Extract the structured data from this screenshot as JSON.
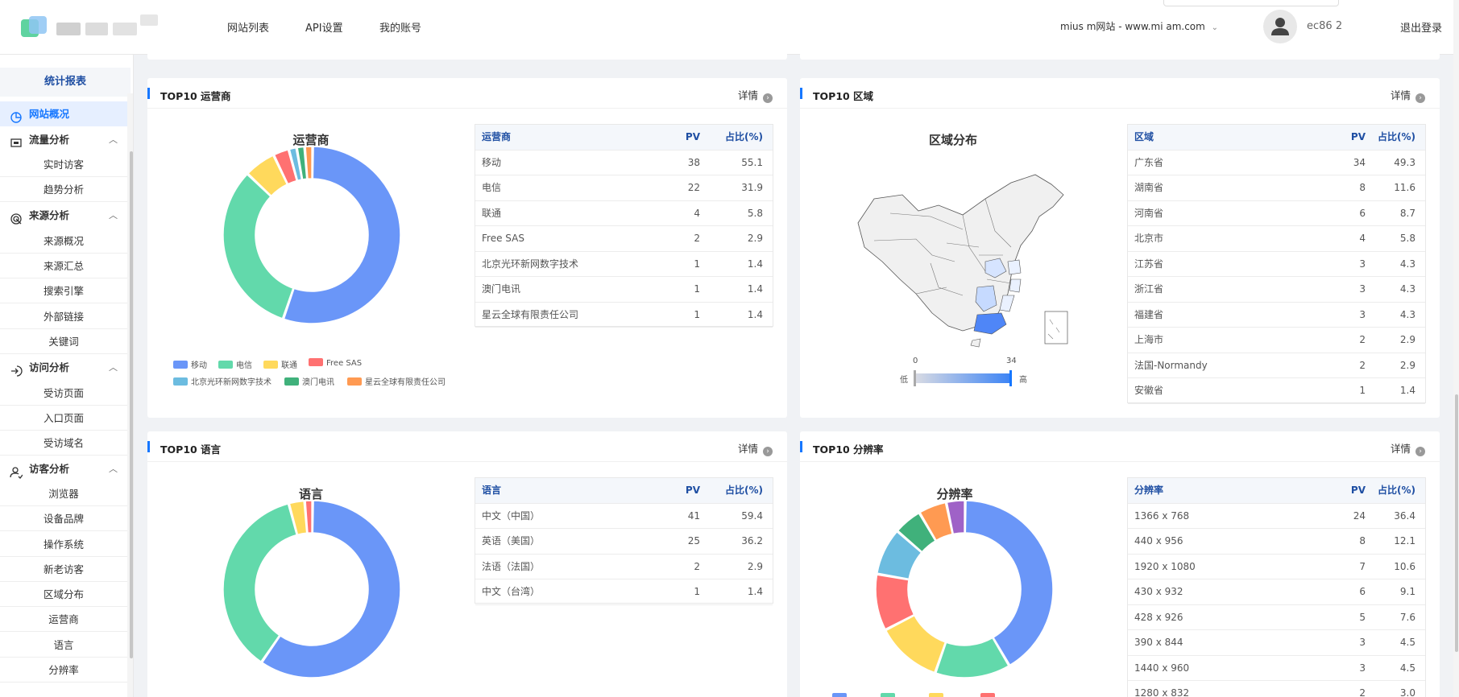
{
  "header": {
    "nav": [
      "网站列表",
      "API设置",
      "我的账号"
    ],
    "site_select": "mius    m网站 - www.mi       am.com",
    "user_id": "ec86        2",
    "logout": "退出登录"
  },
  "sidebar": {
    "title": "统计报表",
    "rows": [
      {
        "type": "group",
        "label": "网站概况",
        "icon": "pie-chart-icon",
        "active": true,
        "expandable": false
      },
      {
        "type": "group",
        "label": "流量分析",
        "icon": "monitor-icon",
        "expandable": true
      },
      {
        "type": "item",
        "label": "实时访客"
      },
      {
        "type": "item",
        "label": "趋势分析"
      },
      {
        "type": "group",
        "label": "来源分析",
        "icon": "target-icon",
        "expandable": true
      },
      {
        "type": "item",
        "label": "来源概况"
      },
      {
        "type": "item",
        "label": "来源汇总"
      },
      {
        "type": "item",
        "label": "搜索引擎"
      },
      {
        "type": "item",
        "label": "外部链接"
      },
      {
        "type": "item",
        "label": "关键词"
      },
      {
        "type": "group",
        "label": "访问分析",
        "icon": "enter-icon",
        "expandable": true
      },
      {
        "type": "item",
        "label": "受访页面"
      },
      {
        "type": "item",
        "label": "入口页面"
      },
      {
        "type": "item",
        "label": "受访域名"
      },
      {
        "type": "group",
        "label": "访客分析",
        "icon": "user-icon",
        "expandable": true
      },
      {
        "type": "item",
        "label": "浏览器"
      },
      {
        "type": "item",
        "label": "设备品牌"
      },
      {
        "type": "item",
        "label": "操作系统"
      },
      {
        "type": "item",
        "label": "新老访客"
      },
      {
        "type": "item",
        "label": "区域分布"
      },
      {
        "type": "item",
        "label": "运营商"
      },
      {
        "type": "item",
        "label": "语言"
      },
      {
        "type": "item",
        "label": "分辨率"
      }
    ]
  },
  "colors": [
    "#6a96f8",
    "#62d9ab",
    "#ffd95c",
    "#ff7171",
    "#6cbce0",
    "#40b17b",
    "#ff9a52",
    "#9f62c7",
    "#ef7eca",
    "#666666"
  ],
  "cards": {
    "carrier": {
      "title": "TOP10 运营商",
      "detail": "详情",
      "chart_title": "运营商",
      "headers": [
        "运营商",
        "PV",
        "占比(%)"
      ],
      "rows": [
        [
          "移动",
          "38",
          "55.1"
        ],
        [
          "电信",
          "22",
          "31.9"
        ],
        [
          "联通",
          "4",
          "5.8"
        ],
        [
          "Free SAS",
          "2",
          "2.9"
        ],
        [
          "北京光环新网数字技术",
          "1",
          "1.4"
        ],
        [
          "澳门电讯",
          "1",
          "1.4"
        ],
        [
          "星云全球有限责任公司",
          "1",
          "1.4"
        ]
      ],
      "legend": [
        "移动",
        "电信",
        "联通",
        "Free SAS",
        "北京光环新网数字技术",
        "澳门电讯",
        "星云全球有限责任公司"
      ]
    },
    "region": {
      "title": "TOP10 区域",
      "detail": "详情",
      "chart_title": "区域分布",
      "headers": [
        "区域",
        "PV",
        "占比(%)"
      ],
      "rows": [
        [
          "广东省",
          "34",
          "49.3"
        ],
        [
          "湖南省",
          "8",
          "11.6"
        ],
        [
          "河南省",
          "6",
          "8.7"
        ],
        [
          "北京市",
          "4",
          "5.8"
        ],
        [
          "江苏省",
          "3",
          "4.3"
        ],
        [
          "浙江省",
          "3",
          "4.3"
        ],
        [
          "福建省",
          "3",
          "4.3"
        ],
        [
          "上海市",
          "2",
          "2.9"
        ],
        [
          "法国-Normandy",
          "2",
          "2.9"
        ],
        [
          "安徽省",
          "1",
          "1.4"
        ]
      ],
      "scale_min": "0",
      "scale_max": "34",
      "scale_low": "低",
      "scale_high": "高"
    },
    "language": {
      "title": "TOP10 语言",
      "detail": "详情",
      "chart_title": "语言",
      "headers": [
        "语言",
        "PV",
        "占比(%)"
      ],
      "rows": [
        [
          "中文（中国）",
          "41",
          "59.4"
        ],
        [
          "英语（美国）",
          "25",
          "36.2"
        ],
        [
          "法语（法国）",
          "2",
          "2.9"
        ],
        [
          "中文（台湾）",
          "1",
          "1.4"
        ]
      ]
    },
    "resolution": {
      "title": "TOP10 分辨率",
      "detail": "详情",
      "chart_title": "分辨率",
      "headers": [
        "分辨率",
        "PV",
        "占比(%)"
      ],
      "rows": [
        [
          "1366 x 768",
          "24",
          "36.4"
        ],
        [
          "440 x 956",
          "8",
          "12.1"
        ],
        [
          "1920 x 1080",
          "7",
          "10.6"
        ],
        [
          "430 x 932",
          "6",
          "9.1"
        ],
        [
          "428 x 926",
          "5",
          "7.6"
        ],
        [
          "390 x 844",
          "3",
          "4.5"
        ],
        [
          "1440 x 960",
          "3",
          "4.5"
        ],
        [
          "1280 x 832",
          "2",
          "3.0"
        ]
      ]
    }
  },
  "chart_data": [
    {
      "type": "pie",
      "title": "运营商",
      "categories": [
        "移动",
        "电信",
        "联通",
        "Free SAS",
        "北京光环新网数字技术",
        "澳门电讯",
        "星云全球有限责任公司"
      ],
      "values": [
        38,
        22,
        4,
        2,
        1,
        1,
        1
      ]
    },
    {
      "type": "pie",
      "title": "语言",
      "categories": [
        "中文（中国）",
        "英语（美国）",
        "法语（法国）",
        "中文（台湾）"
      ],
      "values": [
        41,
        25,
        2,
        1
      ]
    },
    {
      "type": "pie",
      "title": "分辨率",
      "categories": [
        "1366 x 768",
        "440 x 956",
        "1920 x 1080",
        "430 x 932",
        "428 x 926",
        "390 x 844",
        "1440 x 960",
        "1280 x 832"
      ],
      "values": [
        24,
        8,
        7,
        6,
        5,
        3,
        3,
        2
      ]
    }
  ]
}
